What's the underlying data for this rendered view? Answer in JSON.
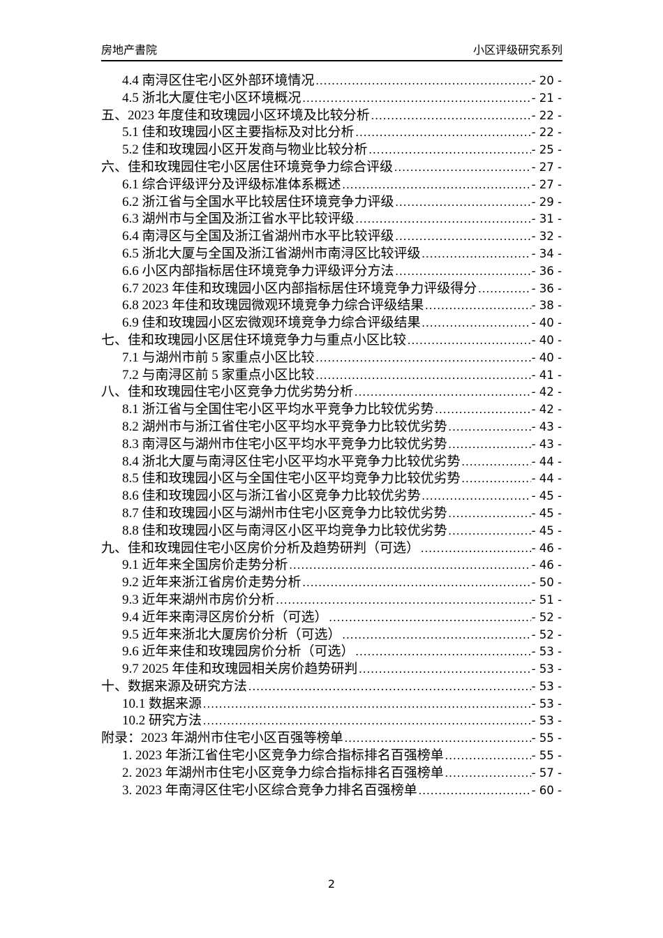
{
  "colors": {
    "background": "#ffffff",
    "text": "#000000",
    "rule": "#000000"
  },
  "document": {
    "header": {
      "left_text": "房地产書院",
      "right_text": "小区评级研究系列"
    },
    "footer": {
      "page_number": "2"
    },
    "toc": {
      "entries": [
        {
          "level": 1,
          "title": "4.4 南浔区住宅小区外部环境情况",
          "page_label": "- 20 -"
        },
        {
          "level": 1,
          "title": "4.5 浙北大厦住宅小区环境概况",
          "page_label": "- 21 -"
        },
        {
          "level": 0,
          "title": "五、2023 年度佳和玫瑰园小区环境及比较分析",
          "page_label": "- 22 -"
        },
        {
          "level": 1,
          "title": "5.1 佳和玫瑰园小区主要指标及对比分析",
          "page_label": "- 22 -"
        },
        {
          "level": 1,
          "title": "5.2 佳和玫瑰园小区开发商与物业比较分析",
          "page_label": "- 25 -"
        },
        {
          "level": 0,
          "title": "六、佳和玫瑰园住宅小区居住环境竞争力综合评级",
          "page_label": "- 27 -"
        },
        {
          "level": 1,
          "title": "6.1 综合评级评分及评级标准体系概述",
          "page_label": "- 27 -"
        },
        {
          "level": 1,
          "title": "6.2 浙江省与全国水平比较居住环境竞争力评级",
          "page_label": "- 29 -"
        },
        {
          "level": 1,
          "title": "6.3 湖州市与全国及浙江省水平比较评级",
          "page_label": "- 31 -"
        },
        {
          "level": 1,
          "title": "6.4 南浔区与全国及浙江省湖州市水平比较评级",
          "page_label": "- 32 -"
        },
        {
          "level": 1,
          "title": "6.5 浙北大厦与全国及浙江省湖州市南浔区比较评级",
          "page_label": "- 34 -"
        },
        {
          "level": 1,
          "title": "6.6 小区内部指标居住环境竞争力评级评分方法",
          "page_label": "- 36 -"
        },
        {
          "level": 1,
          "title": "6.7 2023 年佳和玫瑰园小区内部指标居住环境竞争力评级得分",
          "page_label": "- 36 -"
        },
        {
          "level": 1,
          "title": "6.8 2023 年佳和玫瑰园微观环境竞争力综合评级结果",
          "page_label": "- 38 -"
        },
        {
          "level": 1,
          "title": "6.9 佳和玫瑰园小区宏微观环境竞争力综合评级结果",
          "page_label": "- 40 -"
        },
        {
          "level": 0,
          "title": "七、佳和玫瑰园小区居住环境竞争力与重点小区比较",
          "page_label": "- 40 -"
        },
        {
          "level": 1,
          "title": "7.1 与湖州市前 5 家重点小区比较",
          "page_label": "- 40 -"
        },
        {
          "level": 1,
          "title": "7.2 与南浔区前 5 家重点小区比较",
          "page_label": "- 41 -"
        },
        {
          "level": 0,
          "title": "八、佳和玫瑰园住宅小区竞争力优劣势分析",
          "page_label": "- 42 -"
        },
        {
          "level": 1,
          "title": "8.1 浙江省与全国住宅小区平均水平竞争力比较优劣势",
          "page_label": "- 42 -"
        },
        {
          "level": 1,
          "title": "8.2 湖州市与浙江省住宅小区平均水平竞争力比较优劣势",
          "page_label": "- 43 -"
        },
        {
          "level": 1,
          "title": "8.3 南浔区与湖州市住宅小区平均水平竞争力比较优劣势",
          "page_label": "- 43 -"
        },
        {
          "level": 1,
          "title": "8.4 浙北大厦与南浔区住宅小区平均水平竞争力比较优劣势",
          "page_label": "- 44 -"
        },
        {
          "level": 1,
          "title": "8.5 佳和玫瑰园小区与全国住宅小区平均竞争力比较优劣势",
          "page_label": "- 44 -"
        },
        {
          "level": 1,
          "title": "8.6 佳和玫瑰园小区与浙江省小区竞争力比较优劣势",
          "page_label": "- 45 -"
        },
        {
          "level": 1,
          "title": "8.7 佳和玫瑰园小区与湖州市住宅小区竞争力比较优劣势",
          "page_label": "- 45 -"
        },
        {
          "level": 1,
          "title": "8.8 佳和玫瑰园小区与南浔区小区平均竞争力比较优劣势",
          "page_label": "- 45 -"
        },
        {
          "level": 0,
          "title": "九、佳和玫瑰园住宅小区房价分析及趋势研判（可选）",
          "page_label": "- 46 -"
        },
        {
          "level": 1,
          "title": "9.1 近年来全国房价走势分析",
          "page_label": "- 46 -"
        },
        {
          "level": 1,
          "title": "9.2 近年来浙江省房价走势分析",
          "page_label": "- 50 -"
        },
        {
          "level": 1,
          "title": "9.3 近年来湖州市房价分析",
          "page_label": "- 51 -"
        },
        {
          "level": 1,
          "title": "9.4 近年来南浔区房价分析（可选）",
          "page_label": "- 52 -"
        },
        {
          "level": 1,
          "title": "9.5 近年来浙北大厦房价分析（可选）",
          "page_label": "- 52 -"
        },
        {
          "level": 1,
          "title": "9.6 近年来佳和玫瑰园房价分析（可选）",
          "page_label": "- 53 -"
        },
        {
          "level": 1,
          "title": "9.7 2025 年佳和玫瑰园相关房价趋势研判",
          "page_label": "- 53 -"
        },
        {
          "level": 0,
          "title": "十、数据来源及研究方法",
          "page_label": "- 53 -"
        },
        {
          "level": 1,
          "title": "10.1 数据来源",
          "page_label": "- 53 -"
        },
        {
          "level": 1,
          "title": "10.2 研究方法",
          "page_label": "- 53 -"
        },
        {
          "level": 0,
          "title": "附录：2023 年湖州市住宅小区百强等榜单",
          "page_label": "- 55 -"
        },
        {
          "level": 1,
          "title": "1. 2023 年浙江省住宅小区竞争力综合指标排名百强榜单",
          "page_label": "- 55 -"
        },
        {
          "level": 1,
          "title": "2. 2023 年湖州市住宅小区竞争力综合指标排名百强榜单",
          "page_label": "- 57 -"
        },
        {
          "level": 1,
          "title": "3. 2023 年南浔区住宅小区综合竞争力排名百强榜单",
          "page_label": "- 60 -"
        }
      ]
    }
  }
}
